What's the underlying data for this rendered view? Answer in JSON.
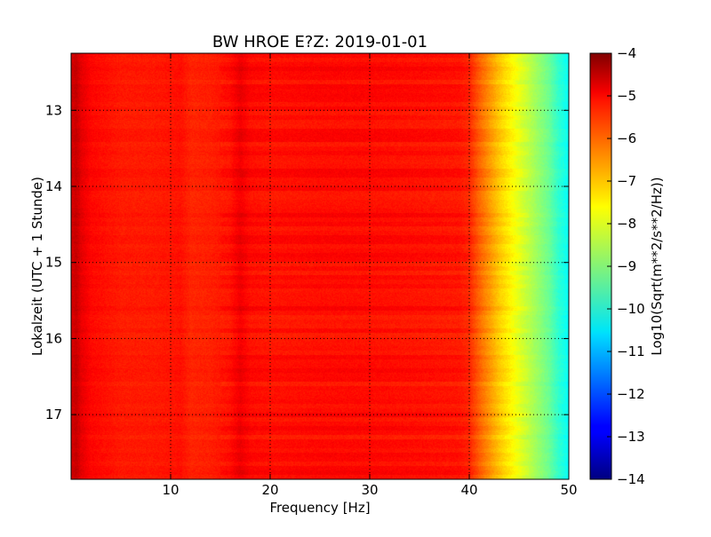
{
  "chart_data": {
    "type": "heatmap",
    "title": "BW HROE E?Z: 2019-01-01",
    "xlabel": "Frequency [Hz]",
    "ylabel": "Lokalzeit (UTC + 1 Stunde)",
    "xlim": [
      0,
      50
    ],
    "ylim": [
      12.25,
      17.85
    ],
    "y_inverted": true,
    "x_ticks": [
      10,
      20,
      30,
      40,
      50
    ],
    "x_tick_labels": [
      "10",
      "20",
      "30",
      "40",
      "50"
    ],
    "y_ticks": [
      13,
      14,
      15,
      16,
      17
    ],
    "y_tick_labels": [
      "13",
      "14",
      "15",
      "16",
      "17"
    ],
    "grid": true,
    "colormap": "jet",
    "colorbar": {
      "label": "Log10(Sqrt(m**2/s**2/Hz))",
      "vmin": -14,
      "vmax": -4,
      "ticks": [
        -4,
        -5,
        -6,
        -7,
        -8,
        -9,
        -10,
        -11,
        -12,
        -13,
        -14
      ],
      "tick_labels": [
        "−4",
        "−5",
        "−6",
        "−7",
        "−8",
        "−9",
        "−10",
        "−11",
        "−12",
        "−13",
        "−14"
      ]
    },
    "spectral_profile": {
      "frequency_hz": [
        0,
        0.5,
        1,
        2,
        5,
        8,
        10,
        11,
        12,
        14,
        16,
        17,
        18,
        20,
        25,
        30,
        35,
        39,
        40,
        41,
        42,
        43,
        44,
        45,
        46,
        47,
        48,
        49,
        50
      ],
      "log10_amplitude": [
        -4.9,
        -4.7,
        -5.0,
        -5.3,
        -5.5,
        -5.5,
        -5.45,
        -5.4,
        -5.6,
        -5.55,
        -5.4,
        -5.1,
        -5.35,
        -5.4,
        -5.35,
        -5.35,
        -5.4,
        -5.45,
        -5.6,
        -6.2,
        -6.7,
        -7.2,
        -7.6,
        -8.0,
        -8.4,
        -8.8,
        -9.2,
        -9.8,
        -10.2
      ]
    }
  }
}
